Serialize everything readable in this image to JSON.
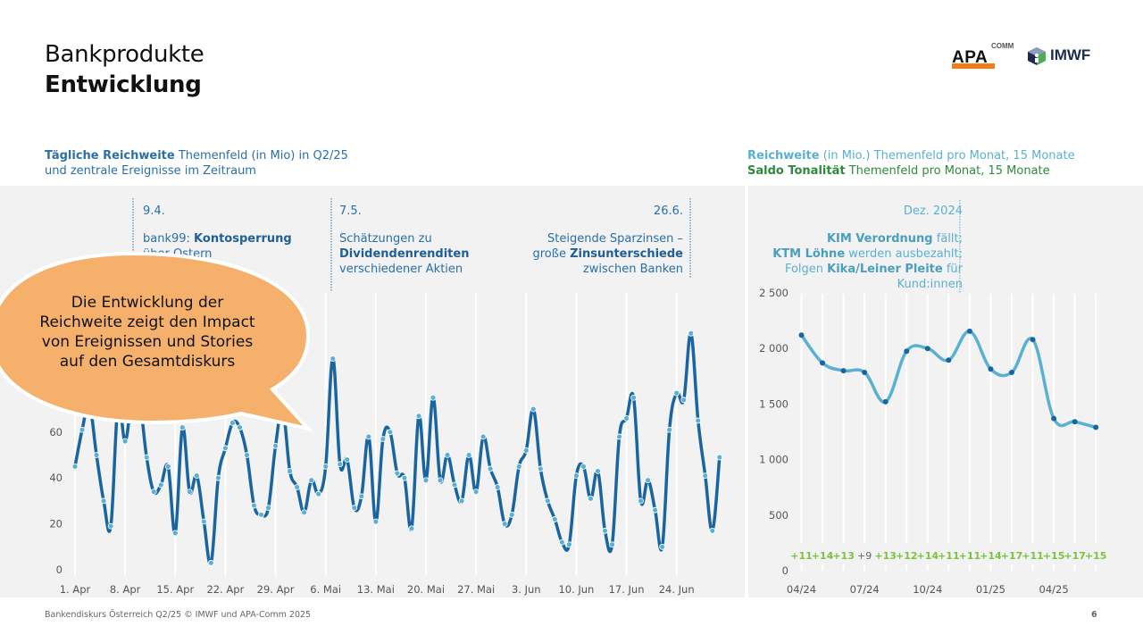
{
  "header": {
    "title_line1": "Bankprodukte",
    "title_line2": "Entwicklung",
    "logos": {
      "apa": "APA",
      "apa_sup": "COMM",
      "imwf": "IMWF"
    }
  },
  "left_panel": {
    "subtitle_bold": "Tägliche Reichweite",
    "subtitle_rest": " Themenfeld (in Mio) in Q2/25",
    "subtitle_line2": "und zentrale Ereignisse im Zeitraum",
    "annotations": [
      {
        "date": "9.4.",
        "line1_pre": "bank99: ",
        "line1_bold": "Kontosperrung",
        "line2": "über Ostern"
      },
      {
        "date": "7.5.",
        "line1": "Schätzungen zu",
        "line2_bold": "Dividendenrenditen",
        "line3": "verschiedener Aktien"
      },
      {
        "date": "26.6.",
        "line1": "Steigende Sparzinsen –",
        "line2_pre": "große ",
        "line2_bold": "Zinsunterschiede",
        "line3": "zwischen Banken"
      }
    ],
    "callout": "Die Entwicklung der Reichweite zeigt den Impact von Ereignissen und Stories auf den Gesamtdiskurs"
  },
  "right_panel": {
    "subtitle1_bold": "Reichweite",
    "subtitle1_rest": " (in Mio.) Themenfeld pro Monat, 15 Monate",
    "subtitle2_bold": "Saldo Tonalität",
    "subtitle2_rest": " Themenfeld pro Monat, 15 Monate",
    "annotation": {
      "date": "Dez. 2024",
      "l1_bold": "KIM Verordnung",
      "l1_rest": " fällt;",
      "l2_bold": "KTM Löhne",
      "l2_rest": " werden ausbezahlt;",
      "l3_pre": "Folgen ",
      "l3_bold": "Kika/Leiner Pleite",
      "l3_rest": " für",
      "l4": "Kund:innen"
    }
  },
  "chart_data": [
    {
      "type": "line",
      "title": "Tägliche Reichweite Themenfeld (in Mio) in Q2/25",
      "xlabel": "",
      "ylabel": "Reichweite (Mio)",
      "ylim": [
        0,
        70
      ],
      "yticks": [
        0,
        20,
        40,
        60
      ],
      "xtick_labels": [
        "1. Apr",
        "8. Apr",
        "15. Apr",
        "22. Apr",
        "29. Apr",
        "6. Mai",
        "13. Mai",
        "20. Mai",
        "27. Mai",
        "3. Jun",
        "10. Jun",
        "17. Jun",
        "24. Jun"
      ],
      "start": "1. Apr",
      "values": [
        45,
        61,
        72,
        50,
        30,
        19,
        72,
        56,
        75,
        74,
        49,
        34,
        37,
        45,
        16,
        62,
        34,
        41,
        21,
        3,
        40,
        53,
        64,
        62,
        50,
        28,
        24,
        27,
        54,
        70,
        43,
        36,
        25,
        39,
        33,
        45,
        92,
        46,
        48,
        27,
        32,
        58,
        21,
        57,
        60,
        42,
        40,
        18,
        67,
        39,
        75,
        39,
        50,
        37,
        30,
        50,
        34,
        58,
        44,
        36,
        20,
        24,
        45,
        52,
        70,
        44,
        30,
        22,
        12,
        11,
        41,
        45,
        31,
        43,
        17,
        11,
        58,
        66,
        75,
        30,
        39,
        26,
        10,
        61,
        77,
        74,
        103,
        65,
        41,
        17,
        49
      ],
      "color_line": "#1a65a0",
      "color_points": "#5ab0d0"
    },
    {
      "type": "line",
      "title": "Reichweite (in Mio.) Themenfeld pro Monat, 15 Monate",
      "ylim": [
        0,
        2500
      ],
      "yticks": [
        0,
        500,
        1000,
        1500,
        2000,
        2500
      ],
      "ytick_labels": [
        "0",
        "500",
        "1 000",
        "1 500",
        "2 000",
        "2 500"
      ],
      "xtick_labels": [
        "04/24",
        "07/24",
        "10/24",
        "01/25",
        "04/25"
      ],
      "categories": [
        "04/24",
        "05/24",
        "06/24",
        "07/24",
        "08/24",
        "09/24",
        "10/24",
        "11/24",
        "12/24",
        "01/25",
        "02/25",
        "03/25",
        "04/25",
        "05/25",
        "06/25"
      ],
      "values": [
        2120,
        1870,
        1800,
        1785,
        1520,
        1975,
        2000,
        1895,
        2155,
        1815,
        1785,
        2080,
        1370,
        1340,
        1290
      ],
      "saldo_labels": [
        "+11",
        "+14",
        "+13",
        "+9",
        "+13",
        "+12",
        "+14",
        "+11",
        "+11",
        "+14",
        "+17",
        "+11",
        "+15",
        "+17",
        "+15"
      ],
      "saldo_colors": [
        "#7cc242",
        "#7cc242",
        "#7cc242",
        "#666666",
        "#7cc242",
        "#7cc242",
        "#7cc242",
        "#7cc242",
        "#7cc242",
        "#7cc242",
        "#7cc242",
        "#7cc242",
        "#7cc242",
        "#7cc242",
        "#7cc242"
      ],
      "color_line": "#5ab0d0",
      "color_points": "#1a65a0"
    }
  ],
  "footer": {
    "source": "Bankendiskurs Österreich Q2/25 © IMWF und APA-Comm 2025",
    "page": "6"
  }
}
